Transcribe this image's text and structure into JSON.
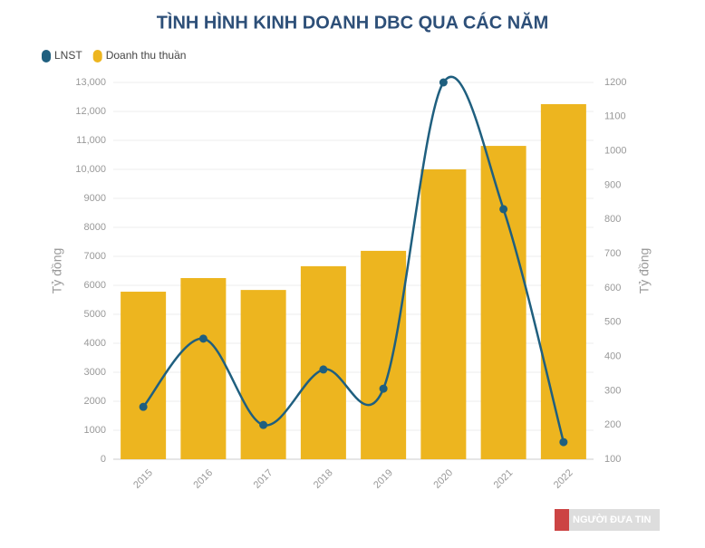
{
  "chart_data": {
    "type": "bar-line",
    "title": "TÌNH HÌNH KINH DOANH DBC QUA CÁC NĂM",
    "categories": [
      "2015",
      "2016",
      "2017",
      "2018",
      "2019",
      "2020",
      "2021",
      "2022"
    ],
    "series": [
      {
        "name": "LNST",
        "type": "line",
        "axis": "y2",
        "color": "#1f5f7f",
        "values": [
          253,
          452,
          200,
          362,
          306,
          1200,
          830,
          150
        ]
      },
      {
        "name": "Doanh thu thuần",
        "type": "bar",
        "color": "#edb51f",
        "values": [
          5780,
          6250,
          5840,
          6660,
          7190,
          10000,
          10810,
          12250
        ]
      }
    ],
    "y_label": "Tỷ đồng",
    "y2_label": "Tỷ đồng",
    "ylim": [
      0,
      13000
    ],
    "yticks": [
      0,
      1000,
      2000,
      3000,
      4000,
      5000,
      6000,
      7000,
      8000,
      9000,
      {
        "value": 10000,
        "label": "10,000"
      },
      {
        "value": 11000,
        "label": "11,000"
      },
      {
        "value": 12000,
        "label": "12,000"
      },
      {
        "value": 13000,
        "label": "13,000"
      }
    ],
    "y2lim": [
      100,
      1200
    ],
    "y2ticks": [
      100,
      200,
      300,
      400,
      500,
      600,
      700,
      800,
      900,
      1000,
      1100,
      1200
    ],
    "grid": true,
    "watermark": "NGƯỜI ĐƯA TIN"
  }
}
